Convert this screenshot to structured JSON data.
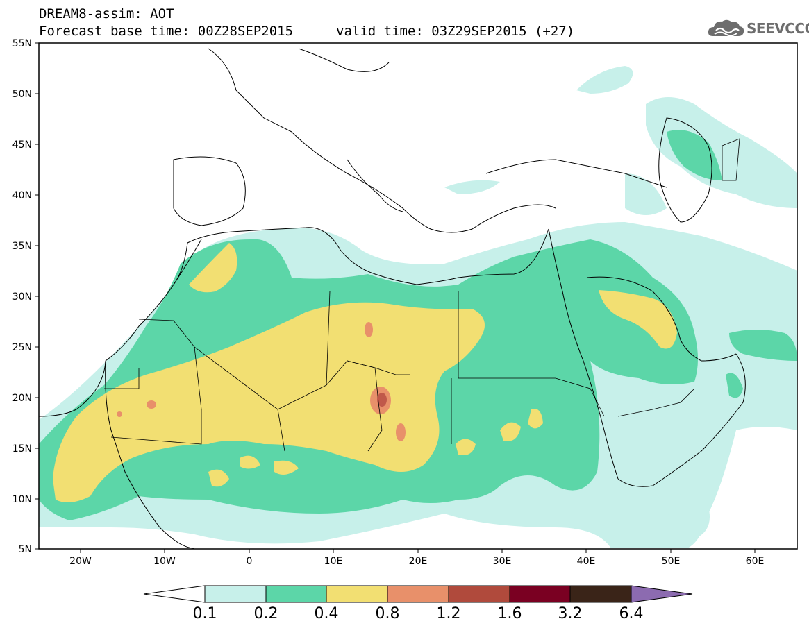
{
  "header": {
    "title": "DREAM8-assim: AOT",
    "base_time": "Forecast base time: 00Z28SEP2015",
    "valid_time": "valid time: 03Z29SEP2015 (+27)"
  },
  "logo": {
    "text": "SEEVCCC",
    "icon": "cloud-icon"
  },
  "map": {
    "lat_labels": [
      "55N",
      "50N",
      "45N",
      "40N",
      "35N",
      "30N",
      "25N",
      "20N",
      "15N",
      "10N",
      "5N"
    ],
    "lon_labels": [
      "20W",
      "10W",
      "0",
      "10E",
      "20E",
      "30E",
      "40E",
      "50E",
      "60E"
    ],
    "lon_range": [
      -25,
      65
    ],
    "lat_range": [
      5,
      55
    ]
  },
  "colorbar": {
    "labels": [
      "0.1",
      "0.2",
      "0.4",
      "0.8",
      "1.2",
      "1.6",
      "3.2",
      "6.4"
    ],
    "colors": [
      "#c7f0ea",
      "#5cd6a8",
      "#f2df72",
      "#e8906a",
      "#b04a3c",
      "#7a0022",
      "#3a2418",
      "#8c6bb0"
    ]
  },
  "legend_colors": {
    "level_01": "#c7f0ea",
    "level_02": "#5cd6a8",
    "level_04": "#f2df72",
    "level_08": "#e8906a",
    "level_12": "#c0584a",
    "coast": "#000000"
  }
}
